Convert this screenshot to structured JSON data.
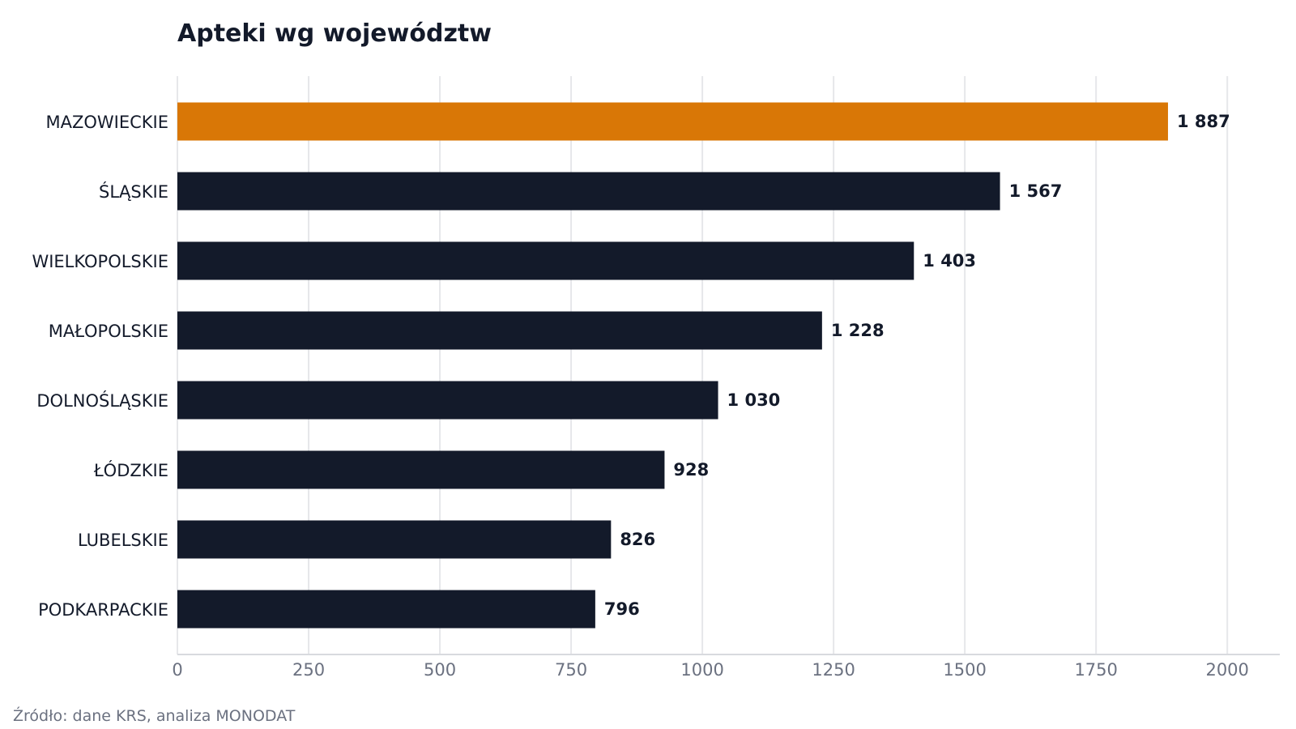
{
  "chart_data": {
    "type": "bar",
    "orientation": "horizontal",
    "title": "Apteki wg województw",
    "source": "Źródło: dane KRS, analiza MONODAT",
    "categories": [
      "MAZOWIECKIE",
      "ŚLĄSKIE",
      "WIELKOPOLSKIE",
      "MAŁOPOLSKIE",
      "DOLNOŚLĄSKIE",
      "ŁÓDZKIE",
      "LUBELSKIE",
      "PODKARPACKIE"
    ],
    "values": [
      1887,
      1567,
      1403,
      1228,
      1030,
      928,
      826,
      796
    ],
    "value_labels": [
      "1 887",
      "1 567",
      "1 403",
      "1 228",
      "1 030",
      "928",
      "826",
      "796"
    ],
    "xlim": [
      0,
      2100
    ],
    "xticks": [
      0,
      250,
      500,
      750,
      1000,
      1250,
      1500,
      1750,
      2000
    ],
    "grid": "vertical",
    "highlight_index": 0,
    "colors": {
      "bar": "#131a2a",
      "highlight": "#d97706",
      "grid": "#e6e7ea",
      "axis": "#d8dade"
    }
  }
}
